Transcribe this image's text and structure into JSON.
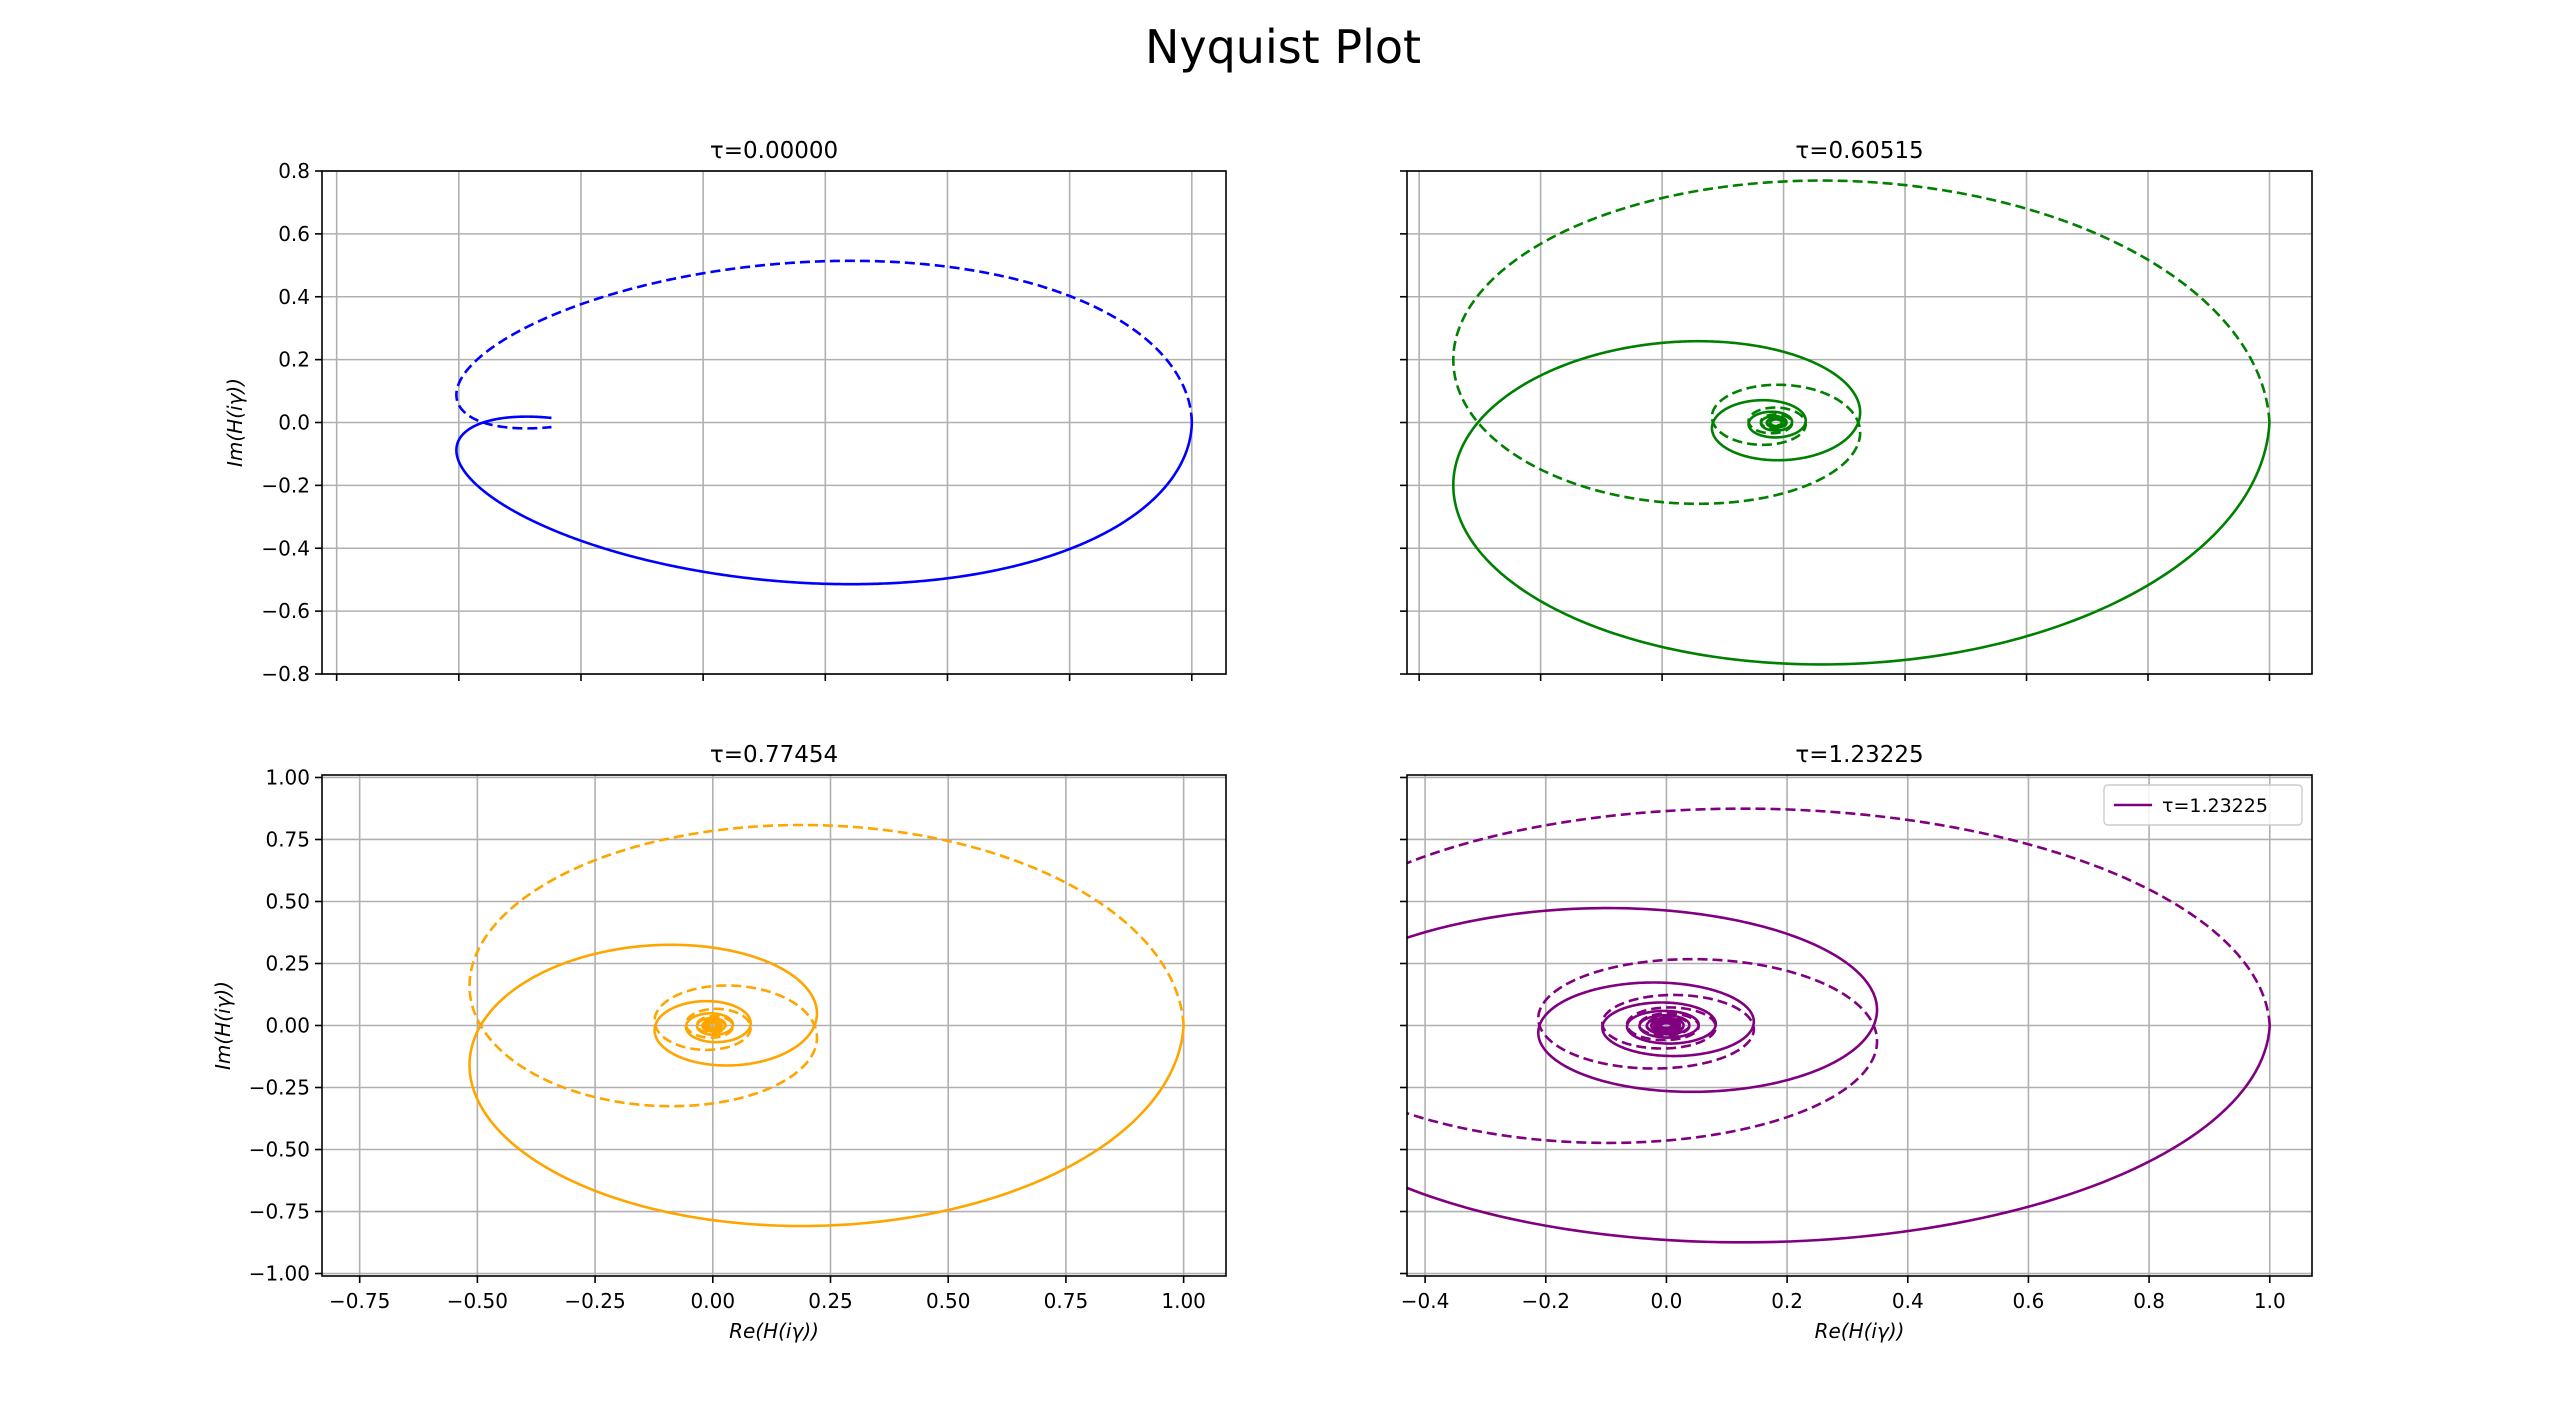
{
  "figure": {
    "title": "Nyquist Plot"
  },
  "chart_data": [
    {
      "type": "line",
      "title": "τ=0.00000",
      "tau": 0.0,
      "color": "#0000ff",
      "xlabel": "",
      "ylabel": "Im(H(iγ))",
      "xlim": [
        -0.78,
        1.07
      ],
      "ylim": [
        -0.8,
        0.8
      ],
      "xticks": [
        -0.75,
        -0.5,
        -0.25,
        0.0,
        0.25,
        0.5,
        0.75,
        1.0
      ],
      "yticks": [
        -0.8,
        -0.6,
        -0.4,
        -0.2,
        0.0,
        0.2,
        0.4,
        0.6,
        0.8
      ],
      "ytick_labels": [
        "−0.8",
        "−0.6",
        "−0.4",
        "−0.2",
        "0.0",
        "0.2",
        "0.4",
        "0.6",
        "0.8"
      ],
      "show_xtick_labels": false,
      "show_ytick_labels": true,
      "grid": true,
      "series": [
        {
          "style": "solid",
          "points": "H(iγ), γ ≥ 0"
        },
        {
          "style": "dashed",
          "points": "H(iγ), γ ≤ 0 (mirror)"
        }
      ],
      "legend": null
    },
    {
      "type": "line",
      "title": "τ=0.60515",
      "tau": 0.60515,
      "color": "#008000",
      "xlabel": "",
      "ylabel": "",
      "xlim": [
        -0.42,
        1.07
      ],
      "ylim": [
        -0.8,
        0.8
      ],
      "xticks": [
        -0.4,
        -0.2,
        0.0,
        0.2,
        0.4,
        0.6,
        0.8,
        1.0
      ],
      "yticks": [
        -0.8,
        -0.6,
        -0.4,
        -0.2,
        0.0,
        0.2,
        0.4,
        0.6,
        0.8
      ],
      "show_xtick_labels": false,
      "show_ytick_labels": false,
      "grid": true,
      "series": [
        {
          "style": "solid"
        },
        {
          "style": "dashed"
        }
      ],
      "legend": null
    },
    {
      "type": "line",
      "title": "τ=0.77454",
      "tau": 0.77454,
      "color": "#ffa500",
      "xlabel": "Re(H(iγ))",
      "ylabel": "Im(H(iγ))",
      "xlim": [
        -0.83,
        1.09
      ],
      "ylim": [
        -1.01,
        1.01
      ],
      "xticks": [
        -0.75,
        -0.5,
        -0.25,
        0.0,
        0.25,
        0.5,
        0.75,
        1.0
      ],
      "xtick_labels": [
        "−0.75",
        "−0.50",
        "−0.25",
        "0.00",
        "0.25",
        "0.50",
        "0.75",
        "1.00"
      ],
      "yticks": [
        -1.0,
        -0.75,
        -0.5,
        -0.25,
        0.0,
        0.25,
        0.5,
        0.75,
        1.0
      ],
      "ytick_labels": [
        "−1.00",
        "−0.75",
        "−0.50",
        "−0.25",
        "0.00",
        "0.25",
        "0.50",
        "0.75",
        "1.00"
      ],
      "show_xtick_labels": true,
      "show_ytick_labels": true,
      "grid": true,
      "series": [
        {
          "style": "solid"
        },
        {
          "style": "dashed"
        }
      ],
      "legend": null
    },
    {
      "type": "line",
      "title": "τ=1.23225",
      "tau": 1.23225,
      "color": "#800080",
      "xlabel": "Re(H(iγ))",
      "ylabel": "",
      "xlim": [
        -0.43,
        1.07
      ],
      "ylim": [
        -1.01,
        1.01
      ],
      "xticks": [
        -0.4,
        -0.2,
        0.0,
        0.2,
        0.4,
        0.6,
        0.8,
        1.0
      ],
      "xtick_labels": [
        "−0.4",
        "−0.2",
        "0.0",
        "0.2",
        "0.4",
        "0.6",
        "0.8",
        "1.0"
      ],
      "yticks": [
        -1.0,
        -0.75,
        -0.5,
        -0.25,
        0.0,
        0.25,
        0.5,
        0.75,
        1.0
      ],
      "show_xtick_labels": true,
      "show_ytick_labels": false,
      "grid": true,
      "series": [
        {
          "style": "solid"
        },
        {
          "style": "dashed"
        }
      ],
      "legend": {
        "label": "τ=1.23225",
        "position": "upper-right"
      }
    }
  ]
}
